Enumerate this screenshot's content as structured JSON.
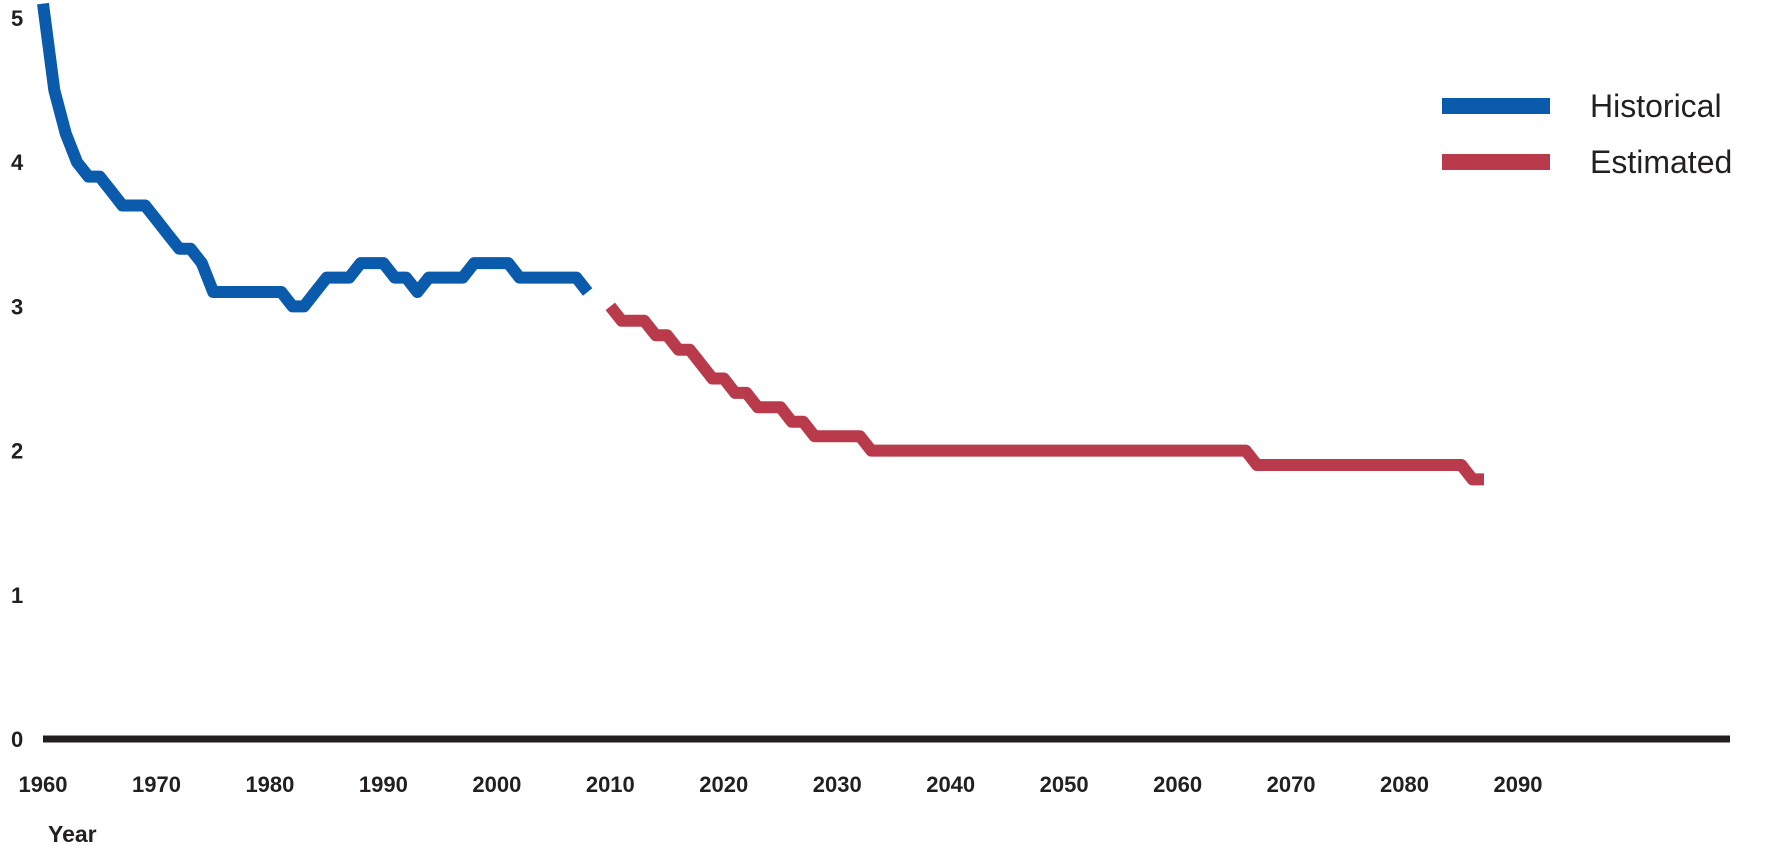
{
  "chart_data": {
    "type": "line",
    "xlabel": "Year",
    "ylabel": "",
    "xlim": [
      1960,
      2090
    ],
    "ylim": [
      0,
      5
    ],
    "x_ticks": [
      1960,
      1970,
      1980,
      1990,
      2000,
      2010,
      2020,
      2030,
      2040,
      2050,
      2060,
      2070,
      2080,
      2090
    ],
    "y_ticks": [
      0,
      1,
      2,
      3,
      4,
      5
    ],
    "grid": false,
    "legend_position": "top-right",
    "series": [
      {
        "name": "Historical",
        "color": "#0a5bab",
        "points": [
          [
            1960,
            5.1
          ],
          [
            1961,
            4.5
          ],
          [
            1962,
            4.2
          ],
          [
            1963,
            4.0
          ],
          [
            1964,
            3.9
          ],
          [
            1965,
            3.9
          ],
          [
            1966,
            3.8
          ],
          [
            1967,
            3.7
          ],
          [
            1968,
            3.7
          ],
          [
            1969,
            3.7
          ],
          [
            1970,
            3.6
          ],
          [
            1971,
            3.5
          ],
          [
            1972,
            3.4
          ],
          [
            1973,
            3.4
          ],
          [
            1974,
            3.3
          ],
          [
            1975,
            3.1
          ],
          [
            1976,
            3.1
          ],
          [
            1977,
            3.1
          ],
          [
            1978,
            3.1
          ],
          [
            1979,
            3.1
          ],
          [
            1980,
            3.1
          ],
          [
            1981,
            3.1
          ],
          [
            1982,
            3.0
          ],
          [
            1983,
            3.0
          ],
          [
            1984,
            3.1
          ],
          [
            1985,
            3.2
          ],
          [
            1986,
            3.2
          ],
          [
            1987,
            3.2
          ],
          [
            1988,
            3.3
          ],
          [
            1989,
            3.3
          ],
          [
            1990,
            3.3
          ],
          [
            1991,
            3.2
          ],
          [
            1992,
            3.2
          ],
          [
            1993,
            3.1
          ],
          [
            1994,
            3.2
          ],
          [
            1995,
            3.2
          ],
          [
            1996,
            3.2
          ],
          [
            1997,
            3.2
          ],
          [
            1998,
            3.3
          ],
          [
            1999,
            3.3
          ],
          [
            2000,
            3.3
          ],
          [
            2001,
            3.3
          ],
          [
            2002,
            3.2
          ],
          [
            2003,
            3.2
          ],
          [
            2004,
            3.2
          ],
          [
            2005,
            3.2
          ],
          [
            2006,
            3.2
          ],
          [
            2007,
            3.2
          ],
          [
            2008,
            3.1
          ]
        ]
      },
      {
        "name": "Estimated",
        "color": "#b83a4b",
        "points": [
          [
            2010,
            3.0
          ],
          [
            2011,
            2.9
          ],
          [
            2012,
            2.9
          ],
          [
            2013,
            2.9
          ],
          [
            2014,
            2.8
          ],
          [
            2015,
            2.8
          ],
          [
            2016,
            2.7
          ],
          [
            2017,
            2.7
          ],
          [
            2018,
            2.6
          ],
          [
            2019,
            2.5
          ],
          [
            2020,
            2.5
          ],
          [
            2021,
            2.4
          ],
          [
            2022,
            2.4
          ],
          [
            2023,
            2.3
          ],
          [
            2024,
            2.3
          ],
          [
            2025,
            2.3
          ],
          [
            2026,
            2.2
          ],
          [
            2027,
            2.2
          ],
          [
            2028,
            2.1
          ],
          [
            2029,
            2.1
          ],
          [
            2030,
            2.1
          ],
          [
            2031,
            2.1
          ],
          [
            2032,
            2.1
          ],
          [
            2033,
            2.0
          ],
          [
            2034,
            2.0
          ],
          [
            2066,
            2.0
          ],
          [
            2067,
            1.9
          ],
          [
            2068,
            1.9
          ],
          [
            2085,
            1.9
          ],
          [
            2086,
            1.8
          ],
          [
            2087,
            1.8
          ]
        ]
      }
    ]
  }
}
